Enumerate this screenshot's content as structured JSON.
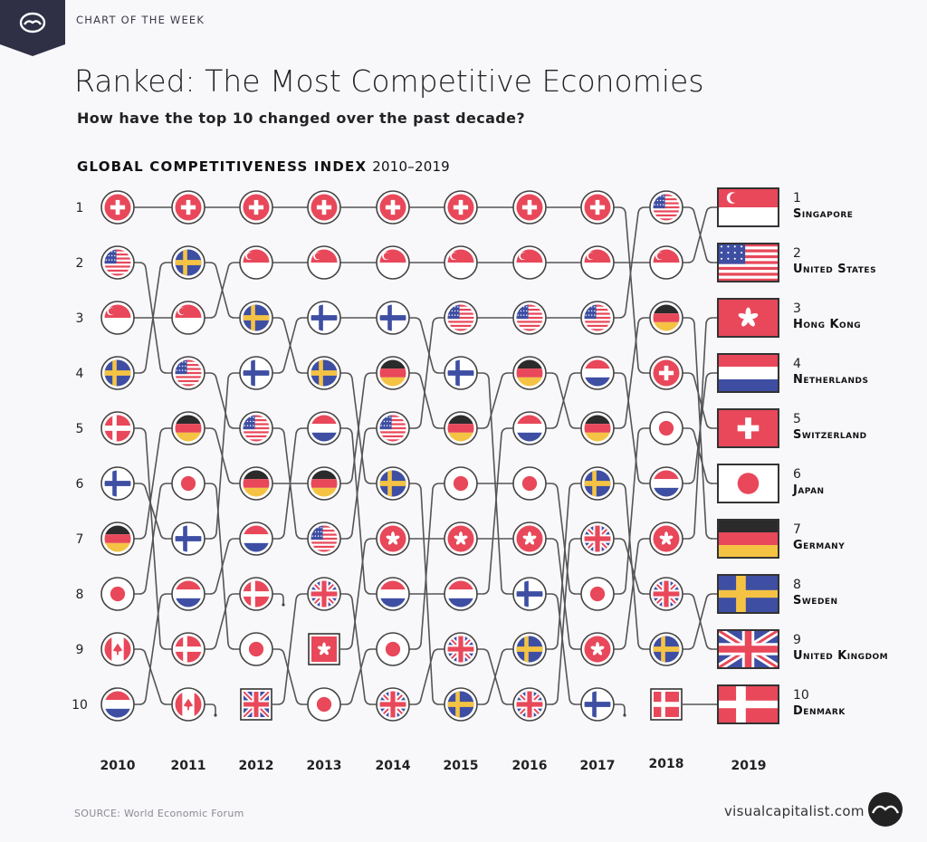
{
  "header": {
    "kicker": "CHART OF THE WEEK",
    "title": "Ranked: The Most Competitive Economies",
    "subtitle": "How have the top 10 changed over the past decade?",
    "heading": "GLOBAL COMPETITIVENESS INDEX",
    "heading_years": "2010–2019"
  },
  "footer": {
    "source": "SOURCE: World Economic Forum",
    "site": "visualcapitalist.com"
  },
  "colors": {
    "red": "#e8485a",
    "blue": "#3e4fa3",
    "yellow": "#f5c344",
    "black": "#2b2b2b",
    "banner": "#2f3045"
  },
  "chart_data": {
    "type": "bump",
    "title": "GLOBAL COMPETITIVENESS INDEX 2010–2019",
    "ranks": [
      1,
      2,
      3,
      4,
      5,
      6,
      7,
      8,
      9,
      10
    ],
    "years": [
      2010,
      2011,
      2012,
      2013,
      2014,
      2015,
      2016,
      2017,
      2018,
      2019
    ],
    "rankings": {
      "2010": [
        "Switzerland",
        "United States",
        "Singapore",
        "Sweden",
        "Denmark",
        "Finland",
        "Germany",
        "Japan",
        "Canada",
        "Netherlands"
      ],
      "2011": [
        "Switzerland",
        "Sweden",
        "Singapore",
        "United States",
        "Germany",
        "Japan",
        "Finland",
        "Netherlands",
        "Denmark",
        "Canada"
      ],
      "2012": [
        "Switzerland",
        "Singapore",
        "Sweden",
        "Finland",
        "United States",
        "Germany",
        "Netherlands",
        "Denmark",
        "Japan",
        "United Kingdom"
      ],
      "2013": [
        "Switzerland",
        "Singapore",
        "Finland",
        "Sweden",
        "Netherlands",
        "Germany",
        "United States",
        "United Kingdom",
        "Hong Kong",
        "Japan"
      ],
      "2014": [
        "Switzerland",
        "Singapore",
        "Finland",
        "Germany",
        "United States",
        "Sweden",
        "Hong Kong",
        "Netherlands",
        "Japan",
        "United Kingdom"
      ],
      "2015": [
        "Switzerland",
        "Singapore",
        "United States",
        "Finland",
        "Germany",
        "Japan",
        "Hong Kong",
        "Netherlands",
        "United Kingdom",
        "Sweden"
      ],
      "2016": [
        "Switzerland",
        "Singapore",
        "United States",
        "Germany",
        "Netherlands",
        "Japan",
        "Hong Kong",
        "Finland",
        "Sweden",
        "United Kingdom"
      ],
      "2017": [
        "Switzerland",
        "Singapore",
        "United States",
        "Netherlands",
        "Germany",
        "Sweden",
        "United Kingdom",
        "Japan",
        "Hong Kong",
        "Finland"
      ],
      "2018": [
        "United States",
        "Singapore",
        "Germany",
        "Switzerland",
        "Japan",
        "Netherlands",
        "Hong Kong",
        "United Kingdom",
        "Sweden",
        "Denmark"
      ],
      "2019": [
        "Singapore",
        "United States",
        "Hong Kong",
        "Netherlands",
        "Switzerland",
        "Japan",
        "Germany",
        "Sweden",
        "United Kingdom",
        "Denmark"
      ]
    },
    "flag_icons": {
      "Switzerland": "swiss-flag-icon",
      "United States": "us-flag-icon",
      "Singapore": "singapore-flag-icon",
      "Sweden": "swedish-flag-icon",
      "Denmark": "danish-flag-icon",
      "Finland": "finnish-flag-icon",
      "Germany": "german-flag-icon",
      "Japan": "japanese-flag-icon",
      "Canada": "canadian-flag-icon",
      "Netherlands": "dutch-flag-icon",
      "United Kingdom": "uk-flag-icon",
      "Hong Kong": "hong-kong-flag-icon"
    },
    "legend": "none",
    "grid": false
  }
}
